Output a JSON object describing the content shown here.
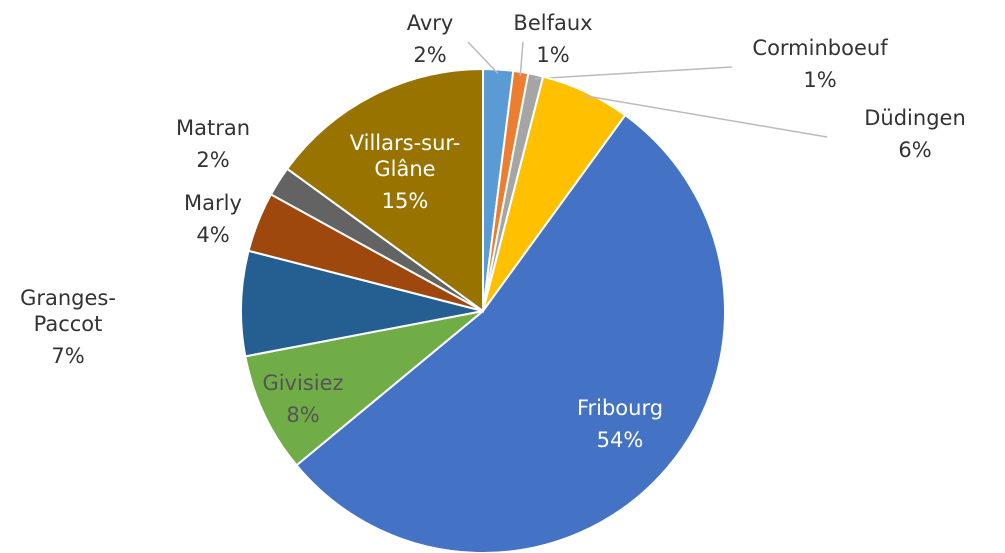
{
  "chart_data": {
    "type": "pie",
    "categories": [
      "Avry",
      "Belfaux",
      "Corminboeuf",
      "Düdingen",
      "Fribourg",
      "Givisiez",
      "Granges-Paccot",
      "Marly",
      "Matran",
      "Villars-sur-Glâne"
    ],
    "values": [
      2,
      1,
      1,
      6,
      54,
      8,
      7,
      4,
      2,
      15
    ],
    "value_labels": [
      "2%",
      "1%",
      "1%",
      "6%",
      "54%",
      "8%",
      "7%",
      "4%",
      "2%",
      "15%"
    ],
    "colors": [
      "#5b9bd5",
      "#ed7d31",
      "#a5a5a5",
      "#ffc000",
      "#4472c4",
      "#70ad47",
      "#255e91",
      "#9e480e",
      "#636363",
      "#997300"
    ]
  }
}
